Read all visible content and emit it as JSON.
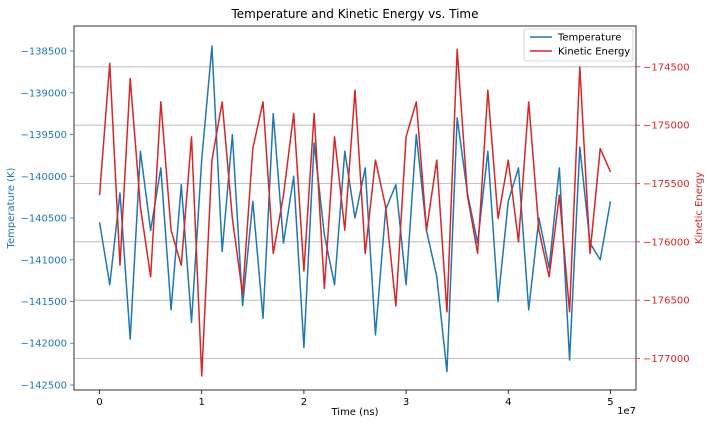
{
  "chart_data": {
    "type": "line",
    "title": "Temperature and Kinetic Energy vs. Time",
    "xlabel": "Time (ns)",
    "x_offset_label": "1e7",
    "y1label": "Temperature (K)",
    "y2label": "Kinetic Energy",
    "xlim": [
      -2500000,
      52500000
    ],
    "y1lim": [
      -142560,
      -138200
    ],
    "y2lim": [
      -177270,
      -174150
    ],
    "x_ticks": [
      0,
      10000000,
      20000000,
      30000000,
      40000000,
      50000000
    ],
    "x_tick_labels": [
      "0",
      "1",
      "2",
      "3",
      "4",
      "5"
    ],
    "y1_ticks": [
      -142500,
      -142000,
      -141500,
      -141000,
      -140500,
      -140000,
      -139500,
      -139000,
      -138500
    ],
    "y1_tick_labels": [
      "−142500",
      "−142000",
      "−141500",
      "−141000",
      "−140500",
      "−140000",
      "−139500",
      "−139000",
      "−138500"
    ],
    "y2_ticks": [
      -177000,
      -176500,
      -176000,
      -175500,
      -175000,
      -174500
    ],
    "y2_tick_labels": [
      "−177000",
      "−176500",
      "−176000",
      "−175500",
      "−175000",
      "−174500"
    ],
    "grid": "horizontal lines at right-axis ticks",
    "legend_position": "top-right",
    "series": [
      {
        "name": "Temperature",
        "axis": "left",
        "color": "#1f77b4",
        "x": [
          0,
          1000000,
          2000000,
          3000000,
          4000000,
          5000000,
          6000000,
          7000000,
          8000000,
          9000000,
          10000000,
          11000000,
          12000000,
          13000000,
          14000000,
          15000000,
          16000000,
          17000000,
          18000000,
          19000000,
          20000000,
          21000000,
          22000000,
          23000000,
          24000000,
          25000000,
          26000000,
          27000000,
          28000000,
          29000000,
          30000000,
          31000000,
          32000000,
          33000000,
          34000000,
          35000000,
          36000000,
          37000000,
          38000000,
          39000000,
          40000000,
          41000000,
          42000000,
          43000000,
          44000000,
          45000000,
          46000000,
          47000000,
          48000000,
          49000000,
          50000000
        ],
        "y": [
          -140550,
          -141300,
          -140200,
          -141950,
          -139700,
          -140650,
          -139900,
          -141600,
          -140100,
          -141750,
          -139800,
          -138440,
          -140900,
          -139500,
          -141550,
          -140300,
          -141700,
          -139250,
          -140800,
          -140000,
          -142050,
          -139600,
          -140700,
          -141300,
          -139700,
          -140500,
          -139900,
          -141900,
          -140400,
          -140100,
          -141300,
          -139500,
          -140650,
          -141200,
          -142340,
          -139300,
          -140200,
          -140800,
          -139700,
          -141500,
          -140300,
          -139900,
          -141600,
          -140500,
          -141100,
          -139900,
          -142200,
          -139650,
          -140800,
          -141000,
          -140300
        ]
      },
      {
        "name": "Kinetic Energy",
        "axis": "right",
        "color": "#d62728",
        "x": [
          0,
          1000000,
          2000000,
          3000000,
          4000000,
          5000000,
          6000000,
          7000000,
          8000000,
          9000000,
          10000000,
          11000000,
          12000000,
          13000000,
          14000000,
          15000000,
          16000000,
          17000000,
          18000000,
          19000000,
          20000000,
          21000000,
          22000000,
          23000000,
          24000000,
          25000000,
          26000000,
          27000000,
          28000000,
          29000000,
          30000000,
          31000000,
          32000000,
          33000000,
          34000000,
          35000000,
          36000000,
          37000000,
          38000000,
          39000000,
          40000000,
          41000000,
          42000000,
          43000000,
          44000000,
          45000000,
          46000000,
          47000000,
          48000000,
          49000000,
          50000000
        ],
        "y": [
          -175600,
          -174470,
          -176200,
          -174600,
          -175700,
          -176300,
          -174800,
          -175900,
          -176200,
          -175100,
          -177150,
          -175300,
          -174800,
          -175800,
          -176450,
          -175200,
          -174800,
          -176100,
          -175600,
          -174900,
          -176250,
          -174900,
          -176400,
          -175100,
          -175900,
          -174700,
          -176100,
          -175300,
          -175700,
          -176550,
          -175100,
          -174800,
          -175900,
          -175300,
          -176600,
          -174350,
          -175600,
          -176100,
          -174700,
          -175800,
          -175300,
          -176000,
          -174800,
          -175900,
          -176300,
          -175600,
          -176600,
          -174500,
          -176100,
          -175200,
          -175400
        ]
      }
    ]
  }
}
